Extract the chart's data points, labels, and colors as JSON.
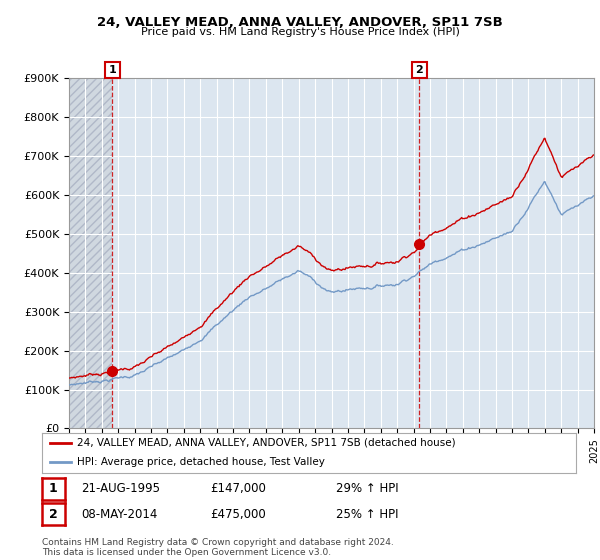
{
  "title1": "24, VALLEY MEAD, ANNA VALLEY, ANDOVER, SP11 7SB",
  "title2": "Price paid vs. HM Land Registry's House Price Index (HPI)",
  "ylim": [
    0,
    900000
  ],
  "yticks": [
    0,
    100000,
    200000,
    300000,
    400000,
    500000,
    600000,
    700000,
    800000,
    900000
  ],
  "ytick_labels": [
    "£0",
    "£100K",
    "£200K",
    "£300K",
    "£400K",
    "£500K",
    "£600K",
    "£700K",
    "£800K",
    "£900K"
  ],
  "legend_line1": "24, VALLEY MEAD, ANNA VALLEY, ANDOVER, SP11 7SB (detached house)",
  "legend_line2": "HPI: Average price, detached house, Test Valley",
  "ann1_label": "1",
  "ann1_date": "21-AUG-1995",
  "ann1_price": "£147,000",
  "ann1_hpi": "29% ↑ HPI",
  "ann2_label": "2",
  "ann2_date": "08-MAY-2014",
  "ann2_price": "£475,000",
  "ann2_hpi": "25% ↑ HPI",
  "footer": "Contains HM Land Registry data © Crown copyright and database right 2024.\nThis data is licensed under the Open Government Licence v3.0.",
  "sale1_year": 1995.65,
  "sale1_price": 147000,
  "sale2_year": 2014.36,
  "sale2_price": 475000,
  "hpi_color": "#7399c6",
  "sale_color": "#cc0000",
  "plot_bg": "#dce6f0",
  "hatch_color": "#c0cfe0"
}
